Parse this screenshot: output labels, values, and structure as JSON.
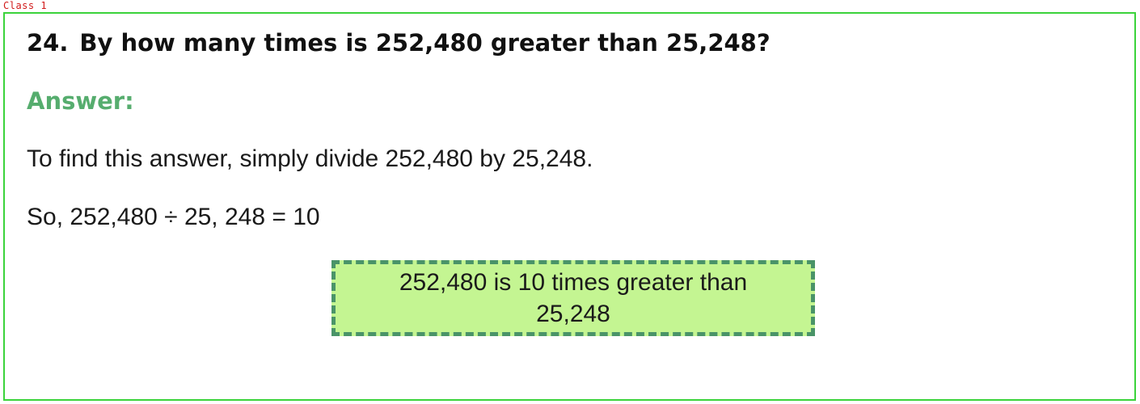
{
  "annotation": {
    "class_label": "Class 1",
    "label_color": "#d11a1a",
    "frame_color": "#3bd33b"
  },
  "question": {
    "number": "24.",
    "text": "By how many times is 252,480 greater than 25,248?"
  },
  "answer": {
    "label": "Answer:",
    "label_color": "#56ad6e",
    "explanation": "To find this answer, simply divide 252,480 by 25,248.",
    "equation": "So, 252,480 ÷ 25, 248 = 10"
  },
  "callout": {
    "text": "252,480 is 10 times greater than 25,248",
    "background_color": "#c4f592",
    "border_color": "#4a9468"
  }
}
